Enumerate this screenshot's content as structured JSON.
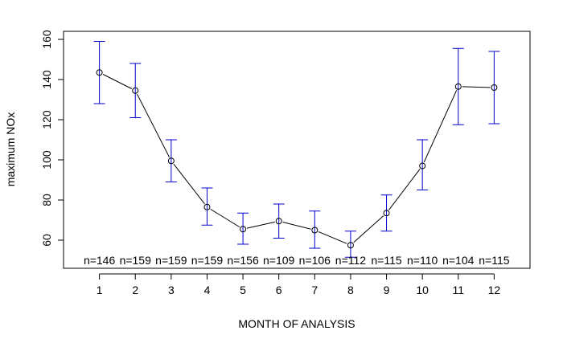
{
  "chart_data": {
    "type": "line",
    "title": "",
    "xlabel": "MONTH OF ANALYSIS",
    "ylabel": "maximum NOx",
    "x": [
      1,
      2,
      3,
      4,
      5,
      6,
      7,
      8,
      9,
      10,
      11,
      12
    ],
    "x_tick_labels": [
      "1",
      "2",
      "3",
      "4",
      "5",
      "6",
      "7",
      "8",
      "9",
      "10",
      "11",
      "12"
    ],
    "y_ticks": [
      60,
      80,
      100,
      120,
      140,
      160
    ],
    "y_tick_labels": [
      "60",
      "80",
      "100",
      "120",
      "140",
      "160"
    ],
    "xlim": [
      0.0,
      13.0
    ],
    "ylim": [
      46,
      164
    ],
    "grid": false,
    "series": [
      {
        "values": [
          143.5,
          134.5,
          99.5,
          76.5,
          65.5,
          69.5,
          65,
          57.5,
          73.5,
          97,
          136.5,
          136
        ],
        "error_upper": [
          159,
          148,
          110,
          86,
          73.5,
          78,
          74.5,
          64.5,
          82.5,
          110,
          155.5,
          154
        ],
        "error_lower": [
          128,
          121,
          89,
          67.5,
          58,
          61,
          56,
          51.5,
          64.5,
          85,
          117.5,
          118
        ]
      }
    ],
    "sample_sizes": [
      "n=146",
      "n=159",
      "n=159",
      "n=159",
      "n=156",
      "n=109",
      "n=106",
      "n=112",
      "n=115",
      "n=110",
      "n=104",
      "n=115"
    ],
    "colors": {
      "line": "#000000",
      "error_bars": "#0000cc",
      "points": "#000000"
    }
  }
}
